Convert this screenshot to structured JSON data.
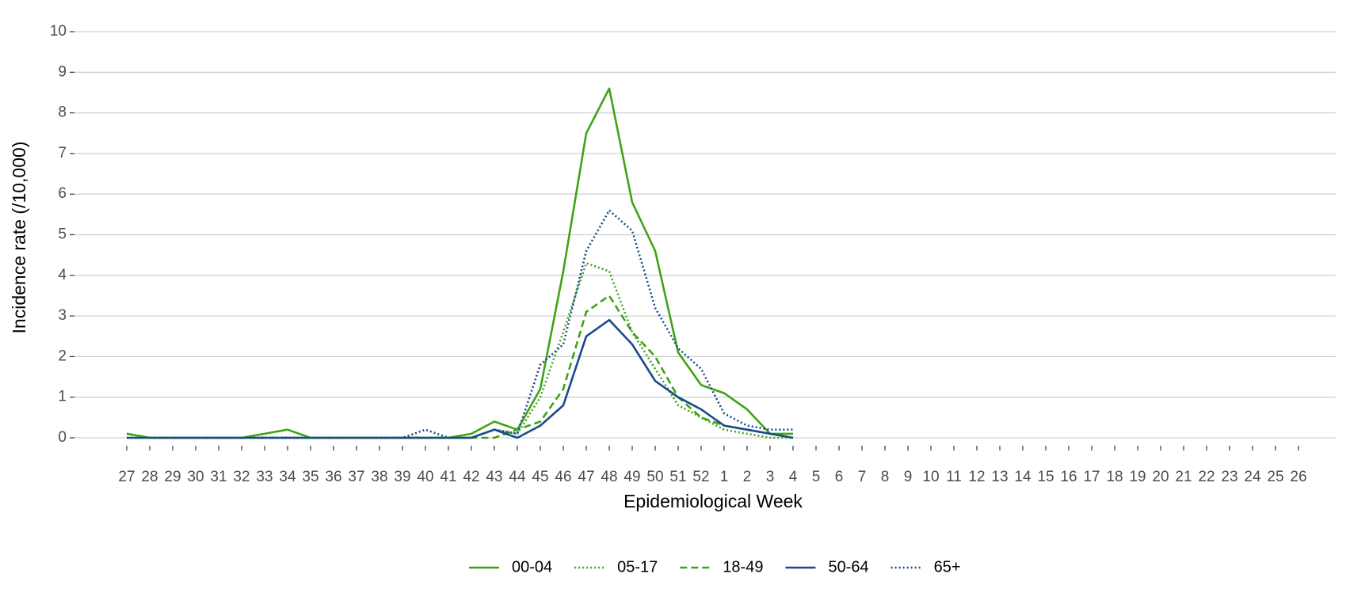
{
  "chart_data": {
    "type": "line",
    "x_label": "Epidemiological Week",
    "y_label": "Incidence rate (/10,000)",
    "categories": [
      "27",
      "28",
      "29",
      "30",
      "31",
      "32",
      "33",
      "34",
      "35",
      "36",
      "37",
      "38",
      "39",
      "40",
      "41",
      "42",
      "43",
      "44",
      "45",
      "46",
      "47",
      "48",
      "49",
      "50",
      "51",
      "52",
      "1",
      "2",
      "3",
      "4",
      "5",
      "6",
      "7",
      "8",
      "9",
      "10",
      "11",
      "12",
      "13",
      "14",
      "15",
      "16",
      "17",
      "18",
      "19",
      "20",
      "21",
      "22",
      "23",
      "24",
      "25",
      "26"
    ],
    "ylim": [
      0,
      10
    ],
    "yticks": [
      0,
      1,
      2,
      3,
      4,
      5,
      6,
      7,
      8,
      9,
      10
    ],
    "grid": true,
    "legend": "bottom",
    "series": [
      {
        "name": "00-04",
        "color": "#3fa315",
        "dash": "solid",
        "values": [
          0.1,
          0,
          0,
          0,
          0,
          0,
          0.1,
          0.2,
          0,
          0,
          0,
          0,
          0,
          0,
          0,
          0.1,
          0.4,
          0.2,
          1.2,
          4.1,
          7.5,
          8.6,
          5.8,
          4.6,
          2.1,
          1.3,
          1.1,
          0.7,
          0.1,
          0.1,
          null,
          null,
          null,
          null,
          null,
          null,
          null,
          null,
          null,
          null,
          null,
          null,
          null,
          null,
          null,
          null,
          null,
          null,
          null,
          null,
          null,
          null
        ]
      },
      {
        "name": "05-17",
        "color": "#3fa315",
        "dash": "dotted",
        "values": [
          0.1,
          0,
          0,
          0,
          0,
          0,
          0,
          0,
          0,
          0,
          0,
          0,
          0,
          0,
          0,
          0,
          0.2,
          0.1,
          1.0,
          2.6,
          4.3,
          4.1,
          2.6,
          1.7,
          0.8,
          0.5,
          0.2,
          0.1,
          0,
          0,
          null,
          null,
          null,
          null,
          null,
          null,
          null,
          null,
          null,
          null,
          null,
          null,
          null,
          null,
          null,
          null,
          null,
          null,
          null,
          null,
          null,
          null
        ]
      },
      {
        "name": "18-49",
        "color": "#3fa315",
        "dash": "dashed",
        "values": [
          0.1,
          0,
          0,
          0,
          0,
          0,
          0,
          0,
          0,
          0,
          0,
          0,
          0,
          0,
          0,
          0,
          0,
          0.2,
          0.4,
          1.2,
          3.1,
          3.5,
          2.6,
          2.0,
          1.0,
          0.5,
          0.3,
          0.2,
          0.1,
          0,
          null,
          null,
          null,
          null,
          null,
          null,
          null,
          null,
          null,
          null,
          null,
          null,
          null,
          null,
          null,
          null,
          null,
          null,
          null,
          null,
          null,
          null
        ]
      },
      {
        "name": "50-64",
        "color": "#1a4a8a",
        "dash": "solid",
        "values": [
          0,
          0,
          0,
          0,
          0,
          0,
          0,
          0,
          0,
          0,
          0,
          0,
          0,
          0,
          0,
          0,
          0.2,
          0,
          0.3,
          0.8,
          2.5,
          2.9,
          2.3,
          1.4,
          1.0,
          0.7,
          0.3,
          0.2,
          0.1,
          0,
          null,
          null,
          null,
          null,
          null,
          null,
          null,
          null,
          null,
          null,
          null,
          null,
          null,
          null,
          null,
          null,
          null,
          null,
          null,
          null,
          null,
          null
        ]
      },
      {
        "name": "65+",
        "color": "#1a4a8a",
        "dash": "dotted",
        "values": [
          0,
          0,
          0,
          0,
          0,
          0,
          0,
          0,
          0,
          0,
          0,
          0,
          0,
          0.2,
          0,
          0,
          0.2,
          0.1,
          1.8,
          2.3,
          4.6,
          5.6,
          5.1,
          3.2,
          2.2,
          1.7,
          0.6,
          0.3,
          0.2,
          0.2,
          null,
          null,
          null,
          null,
          null,
          null,
          null,
          null,
          null,
          null,
          null,
          null,
          null,
          null,
          null,
          null,
          null,
          null,
          null,
          null,
          null,
          null
        ]
      }
    ]
  }
}
